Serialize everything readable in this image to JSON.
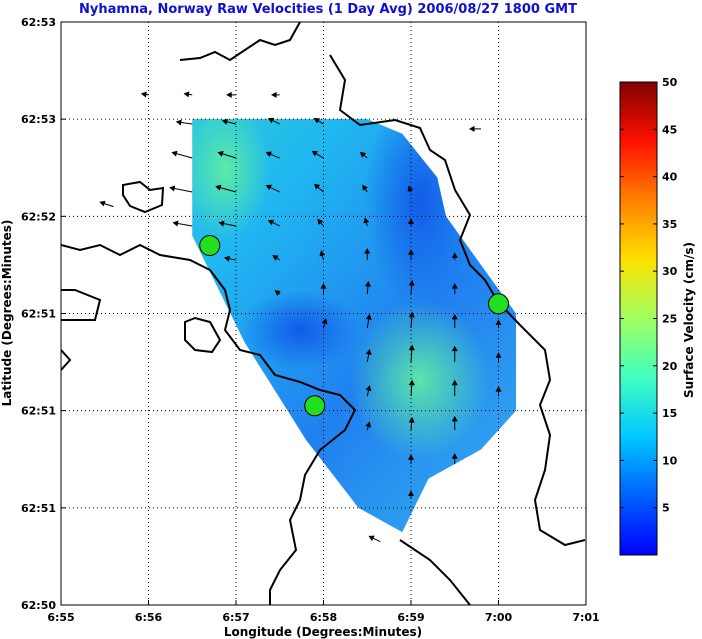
{
  "chart_data": {
    "type": "heatmap",
    "title": "Nyhamna, Norway Raw Velocities (1 Day Avg) 2006/08/27 1800 GMT",
    "xlabel": "Longitude (Degrees:Minutes)",
    "ylabel": "Latitude (Degrees:Minutes)",
    "xticks": [
      "6:55",
      "6:56",
      "6:57",
      "6:58",
      "6:59",
      "7:00",
      "7:01"
    ],
    "yticks": [
      "62:50",
      "62:51",
      "62:51",
      "62:51",
      "62:52",
      "62:53",
      "62:53"
    ],
    "grid": true,
    "colorbar": {
      "label": "Surface Velocity (cm/s)",
      "range": [
        0,
        50
      ],
      "ticks": [
        5,
        10,
        15,
        20,
        25,
        30,
        35,
        40,
        45,
        50
      ]
    },
    "stations": [
      {
        "lon_min": 56.7,
        "lat_idx": 3.7
      },
      {
        "lon_min": 57.9,
        "lat_idx": 2.05
      },
      {
        "lon_min": 60.0,
        "lat_idx": 3.1
      }
    ],
    "velocity_scale": "cm/s",
    "domain_polygon": [
      [
        56.5,
        5.0
      ],
      [
        58.5,
        5.0
      ],
      [
        58.9,
        4.85
      ],
      [
        59.3,
        4.4
      ],
      [
        59.4,
        4.0
      ],
      [
        60.2,
        3.0
      ],
      [
        60.2,
        2.0
      ],
      [
        59.8,
        1.6
      ],
      [
        59.2,
        1.3
      ],
      [
        58.9,
        0.75
      ],
      [
        58.4,
        1.0
      ],
      [
        57.8,
        1.7
      ],
      [
        57.1,
        2.7
      ],
      [
        56.5,
        3.8
      ]
    ],
    "vectors": [
      {
        "lon": 56.5,
        "lat": 4.95,
        "u": -0.14,
        "v": 0.02
      },
      {
        "lon": 56.5,
        "lat": 4.6,
        "u": -0.18,
        "v": 0.05
      },
      {
        "lon": 56.5,
        "lat": 4.25,
        "u": -0.2,
        "v": 0.04
      },
      {
        "lon": 56.5,
        "lat": 3.9,
        "u": -0.17,
        "v": 0.03
      },
      {
        "lon": 57.0,
        "lat": 4.95,
        "u": -0.12,
        "v": 0.03
      },
      {
        "lon": 57.0,
        "lat": 4.6,
        "u": -0.16,
        "v": 0.05
      },
      {
        "lon": 57.0,
        "lat": 4.25,
        "u": -0.18,
        "v": 0.05
      },
      {
        "lon": 57.0,
        "lat": 3.9,
        "u": -0.15,
        "v": 0.03
      },
      {
        "lon": 57.0,
        "lat": 3.55,
        "u": -0.1,
        "v": 0.02
      },
      {
        "lon": 57.5,
        "lat": 4.95,
        "u": -0.1,
        "v": 0.05
      },
      {
        "lon": 57.5,
        "lat": 4.6,
        "u": -0.12,
        "v": 0.05
      },
      {
        "lon": 57.5,
        "lat": 4.25,
        "u": -0.12,
        "v": 0.06
      },
      {
        "lon": 57.5,
        "lat": 3.9,
        "u": -0.1,
        "v": 0.05
      },
      {
        "lon": 57.5,
        "lat": 3.55,
        "u": -0.06,
        "v": 0.04
      },
      {
        "lon": 57.5,
        "lat": 3.2,
        "u": -0.04,
        "v": 0.03
      },
      {
        "lon": 58.0,
        "lat": 4.95,
        "u": -0.08,
        "v": 0.05
      },
      {
        "lon": 58.0,
        "lat": 4.6,
        "u": -0.1,
        "v": 0.06
      },
      {
        "lon": 58.0,
        "lat": 4.25,
        "u": -0.08,
        "v": 0.07
      },
      {
        "lon": 58.0,
        "lat": 3.9,
        "u": -0.05,
        "v": 0.06
      },
      {
        "lon": 58.0,
        "lat": 3.55,
        "u": -0.02,
        "v": 0.08
      },
      {
        "lon": 58.0,
        "lat": 3.2,
        "u": 0.0,
        "v": 0.09
      },
      {
        "lon": 58.0,
        "lat": 2.85,
        "u": 0.02,
        "v": 0.08
      },
      {
        "lon": 58.5,
        "lat": 4.6,
        "u": -0.06,
        "v": 0.05
      },
      {
        "lon": 58.5,
        "lat": 4.25,
        "u": -0.04,
        "v": 0.06
      },
      {
        "lon": 58.5,
        "lat": 3.9,
        "u": -0.02,
        "v": 0.07
      },
      {
        "lon": 58.5,
        "lat": 3.55,
        "u": 0.0,
        "v": 0.1
      },
      {
        "lon": 58.5,
        "lat": 3.2,
        "u": 0.01,
        "v": 0.11
      },
      {
        "lon": 58.5,
        "lat": 2.85,
        "u": 0.02,
        "v": 0.12
      },
      {
        "lon": 58.5,
        "lat": 2.5,
        "u": 0.02,
        "v": 0.11
      },
      {
        "lon": 58.5,
        "lat": 2.15,
        "u": 0.02,
        "v": 0.09
      },
      {
        "lon": 58.5,
        "lat": 1.8,
        "u": 0.02,
        "v": 0.07
      },
      {
        "lon": 59.0,
        "lat": 4.25,
        "u": -0.02,
        "v": 0.05
      },
      {
        "lon": 59.0,
        "lat": 3.9,
        "u": 0.0,
        "v": 0.06
      },
      {
        "lon": 59.0,
        "lat": 3.55,
        "u": 0.0,
        "v": 0.09
      },
      {
        "lon": 59.0,
        "lat": 3.2,
        "u": 0.01,
        "v": 0.12
      },
      {
        "lon": 59.0,
        "lat": 2.85,
        "u": 0.01,
        "v": 0.14
      },
      {
        "lon": 59.0,
        "lat": 2.5,
        "u": 0.01,
        "v": 0.15
      },
      {
        "lon": 59.0,
        "lat": 2.15,
        "u": 0.01,
        "v": 0.14
      },
      {
        "lon": 59.0,
        "lat": 1.8,
        "u": 0.01,
        "v": 0.11
      },
      {
        "lon": 59.0,
        "lat": 1.45,
        "u": 0.0,
        "v": 0.08
      },
      {
        "lon": 59.0,
        "lat": 1.1,
        "u": 0.0,
        "v": 0.06
      },
      {
        "lon": 59.5,
        "lat": 3.55,
        "u": 0.0,
        "v": 0.06
      },
      {
        "lon": 59.5,
        "lat": 3.2,
        "u": 0.0,
        "v": 0.09
      },
      {
        "lon": 59.5,
        "lat": 2.85,
        "u": 0.0,
        "v": 0.12
      },
      {
        "lon": 59.5,
        "lat": 2.5,
        "u": 0.0,
        "v": 0.14
      },
      {
        "lon": 59.5,
        "lat": 2.15,
        "u": 0.0,
        "v": 0.14
      },
      {
        "lon": 59.5,
        "lat": 1.8,
        "u": 0.0,
        "v": 0.12
      },
      {
        "lon": 59.5,
        "lat": 1.45,
        "u": 0.0,
        "v": 0.09
      },
      {
        "lon": 60.0,
        "lat": 2.85,
        "u": 0.0,
        "v": 0.07
      },
      {
        "lon": 60.0,
        "lat": 2.5,
        "u": 0.0,
        "v": 0.08
      },
      {
        "lon": 60.0,
        "lat": 2.15,
        "u": 0.0,
        "v": 0.08
      },
      {
        "lon": 56.0,
        "lat": 5.25,
        "u": -0.06,
        "v": 0.01
      },
      {
        "lon": 56.5,
        "lat": 5.25,
        "u": -0.07,
        "v": 0.01
      },
      {
        "lon": 57.0,
        "lat": 5.25,
        "u": -0.08,
        "v": 0.0
      },
      {
        "lon": 57.5,
        "lat": 5.25,
        "u": -0.07,
        "v": 0.0
      },
      {
        "lon": 55.6,
        "lat": 4.1,
        "u": -0.12,
        "v": 0.04
      },
      {
        "lon": 59.8,
        "lat": 4.9,
        "u": -0.1,
        "v": 0.0
      },
      {
        "lon": 58.65,
        "lat": 0.65,
        "u": -0.1,
        "v": 0.05
      }
    ]
  }
}
